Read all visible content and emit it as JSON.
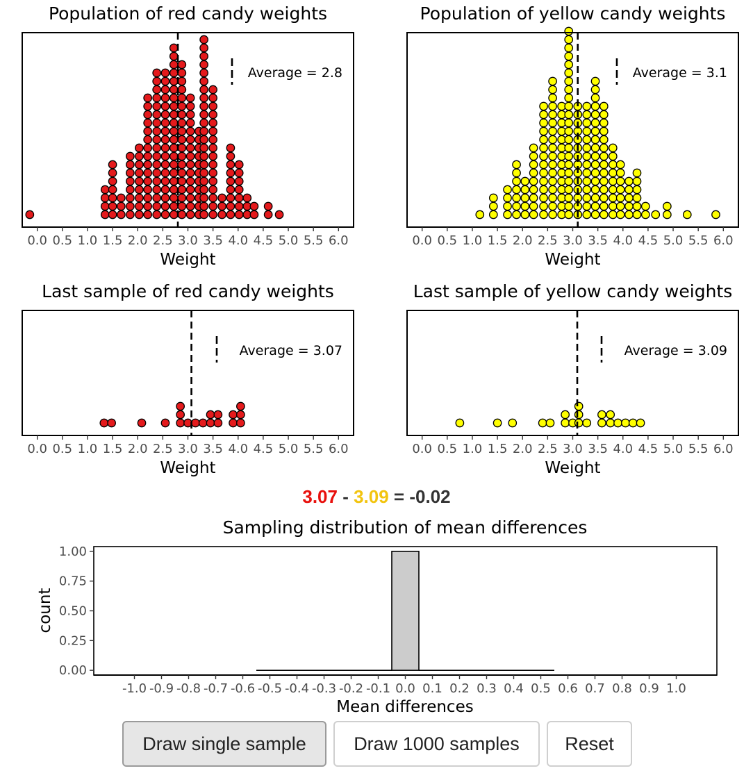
{
  "equation": {
    "red": "3.07",
    "minus": " - ",
    "yellow": "3.09",
    "equals": " = -0.02",
    "colors": {
      "red": "#e8100d",
      "yellow": "#f2c40f",
      "dark": "#333333"
    }
  },
  "buttons": [
    {
      "label": "Draw single sample",
      "active": true
    },
    {
      "label": "Draw 1000 samples",
      "active": false
    },
    {
      "label": "Reset",
      "active": false
    }
  ],
  "chart_data": [
    {
      "type": "scatter",
      "title": "Population of red candy weights",
      "xlabel": "Weight",
      "x_ticks": [
        "0.0",
        "0.5",
        "1.0",
        "1.5",
        "2.0",
        "2.5",
        "3.0",
        "3.5",
        "4.0",
        "4.5",
        "5.0",
        "5.5",
        "6.0"
      ],
      "xlim": [
        -0.3,
        6.3
      ],
      "fill": "#e41a1c",
      "mean_line": 2.8,
      "annotation": "Average = 2.8",
      "stacks": [
        {
          "x": -0.15,
          "count": 1
        },
        {
          "x": 1.35,
          "count": 4
        },
        {
          "x": 1.5,
          "count": 7
        },
        {
          "x": 1.67,
          "count": 3
        },
        {
          "x": 1.85,
          "count": 8
        },
        {
          "x": 2.03,
          "count": 9
        },
        {
          "x": 2.2,
          "count": 15
        },
        {
          "x": 2.38,
          "count": 18
        },
        {
          "x": 2.55,
          "count": 18
        },
        {
          "x": 2.72,
          "count": 21
        },
        {
          "x": 2.88,
          "count": 19
        },
        {
          "x": 3.05,
          "count": 15
        },
        {
          "x": 3.22,
          "count": 11
        },
        {
          "x": 3.32,
          "count": 22
        },
        {
          "x": 3.5,
          "count": 16
        },
        {
          "x": 3.68,
          "count": 3
        },
        {
          "x": 3.85,
          "count": 9
        },
        {
          "x": 4.02,
          "count": 7
        },
        {
          "x": 4.18,
          "count": 3
        },
        {
          "x": 4.32,
          "count": 2
        },
        {
          "x": 4.6,
          "count": 2
        },
        {
          "x": 4.82,
          "count": 1
        }
      ]
    },
    {
      "type": "scatter",
      "title": "Population of yellow candy weights",
      "xlabel": "Weight",
      "x_ticks": [
        "0.0",
        "0.5",
        "1.0",
        "1.5",
        "2.0",
        "2.5",
        "3.0",
        "3.5",
        "4.0",
        "4.5",
        "5.0",
        "5.5",
        "6.0"
      ],
      "xlim": [
        -0.3,
        6.3
      ],
      "fill": "#ffff00",
      "mean_line": 3.1,
      "annotation": "Average = 3.1",
      "stacks": [
        {
          "x": 1.15,
          "count": 1
        },
        {
          "x": 1.42,
          "count": 3
        },
        {
          "x": 1.7,
          "count": 4
        },
        {
          "x": 1.88,
          "count": 7
        },
        {
          "x": 2.05,
          "count": 5
        },
        {
          "x": 2.22,
          "count": 9
        },
        {
          "x": 2.42,
          "count": 14
        },
        {
          "x": 2.6,
          "count": 17
        },
        {
          "x": 2.78,
          "count": 14
        },
        {
          "x": 2.92,
          "count": 23
        },
        {
          "x": 3.1,
          "count": 14
        },
        {
          "x": 3.28,
          "count": 14
        },
        {
          "x": 3.45,
          "count": 17
        },
        {
          "x": 3.62,
          "count": 14
        },
        {
          "x": 3.8,
          "count": 9
        },
        {
          "x": 3.95,
          "count": 7
        },
        {
          "x": 4.12,
          "count": 5
        },
        {
          "x": 4.28,
          "count": 6
        },
        {
          "x": 4.45,
          "count": 2
        },
        {
          "x": 4.65,
          "count": 1
        },
        {
          "x": 4.88,
          "count": 2
        },
        {
          "x": 5.28,
          "count": 1
        },
        {
          "x": 5.85,
          "count": 1
        }
      ]
    },
    {
      "type": "scatter",
      "title": "Last sample of red candy weights",
      "xlabel": "Weight",
      "x_ticks": [
        "0.0",
        "0.5",
        "1.0",
        "1.5",
        "2.0",
        "2.5",
        "3.0",
        "3.5",
        "4.0",
        "4.5",
        "5.0",
        "5.5",
        "6.0"
      ],
      "xlim": [
        -0.3,
        6.3
      ],
      "fill": "#e41a1c",
      "mean_line": 3.07,
      "annotation": "Average =  3.07",
      "stacks": [
        {
          "x": 1.33,
          "count": 1
        },
        {
          "x": 1.48,
          "count": 1
        },
        {
          "x": 2.08,
          "count": 1
        },
        {
          "x": 2.55,
          "count": 1
        },
        {
          "x": 2.85,
          "count": 3
        },
        {
          "x": 3.0,
          "count": 1
        },
        {
          "x": 3.15,
          "count": 1
        },
        {
          "x": 3.3,
          "count": 1
        },
        {
          "x": 3.45,
          "count": 2
        },
        {
          "x": 3.6,
          "count": 2
        },
        {
          "x": 3.9,
          "count": 2
        },
        {
          "x": 4.05,
          "count": 3
        }
      ]
    },
    {
      "type": "scatter",
      "title": "Last sample of yellow candy weights",
      "xlabel": "Weight",
      "x_ticks": [
        "0.0",
        "0.5",
        "1.0",
        "1.5",
        "2.0",
        "2.5",
        "3.0",
        "3.5",
        "4.0",
        "4.5",
        "5.0",
        "5.5",
        "6.0"
      ],
      "xlim": [
        -0.3,
        6.3
      ],
      "fill": "#ffff00",
      "mean_line": 3.09,
      "annotation": "Average =  3.09",
      "stacks": [
        {
          "x": 0.75,
          "count": 1
        },
        {
          "x": 1.5,
          "count": 1
        },
        {
          "x": 1.8,
          "count": 1
        },
        {
          "x": 2.4,
          "count": 1
        },
        {
          "x": 2.55,
          "count": 1
        },
        {
          "x": 2.85,
          "count": 2
        },
        {
          "x": 3.0,
          "count": 1
        },
        {
          "x": 3.12,
          "count": 3
        },
        {
          "x": 3.28,
          "count": 1
        },
        {
          "x": 3.58,
          "count": 2
        },
        {
          "x": 3.75,
          "count": 2
        },
        {
          "x": 3.9,
          "count": 1
        },
        {
          "x": 4.05,
          "count": 1
        },
        {
          "x": 4.2,
          "count": 1
        },
        {
          "x": 4.35,
          "count": 1
        }
      ]
    },
    {
      "type": "bar",
      "title": "Sampling distribution of mean differences",
      "xlabel": "Mean differences",
      "ylabel": "count",
      "x_ticks": [
        "-1.0",
        "-0.9",
        "-0.8",
        "-0.7",
        "-0.6",
        "-0.5",
        "-0.4",
        "-0.3",
        "-0.2",
        "-0.1",
        "0.0",
        "0.1",
        "0.2",
        "0.3",
        "0.4",
        "0.5",
        "0.6",
        "0.7",
        "0.8",
        "0.9",
        "1.0"
      ],
      "y_ticks": [
        "0.00",
        "0.25",
        "0.50",
        "0.75",
        "1.00"
      ],
      "xlim": [
        -1.15,
        1.15
      ],
      "ylim": [
        -0.04,
        1.04
      ],
      "bar_color": "#cccccc",
      "bins": [
        {
          "x0": -0.55,
          "x1": -0.45,
          "count": 0
        },
        {
          "x0": -0.45,
          "x1": -0.35,
          "count": 0
        },
        {
          "x0": -0.35,
          "x1": -0.25,
          "count": 0
        },
        {
          "x0": -0.25,
          "x1": -0.15,
          "count": 0
        },
        {
          "x0": -0.15,
          "x1": -0.05,
          "count": 0
        },
        {
          "x0": -0.05,
          "x1": 0.05,
          "count": 1
        },
        {
          "x0": 0.05,
          "x1": 0.15,
          "count": 0
        },
        {
          "x0": 0.15,
          "x1": 0.25,
          "count": 0
        },
        {
          "x0": 0.25,
          "x1": 0.35,
          "count": 0
        },
        {
          "x0": 0.35,
          "x1": 0.45,
          "count": 0
        },
        {
          "x0": 0.45,
          "x1": 0.55,
          "count": 0
        }
      ]
    }
  ]
}
